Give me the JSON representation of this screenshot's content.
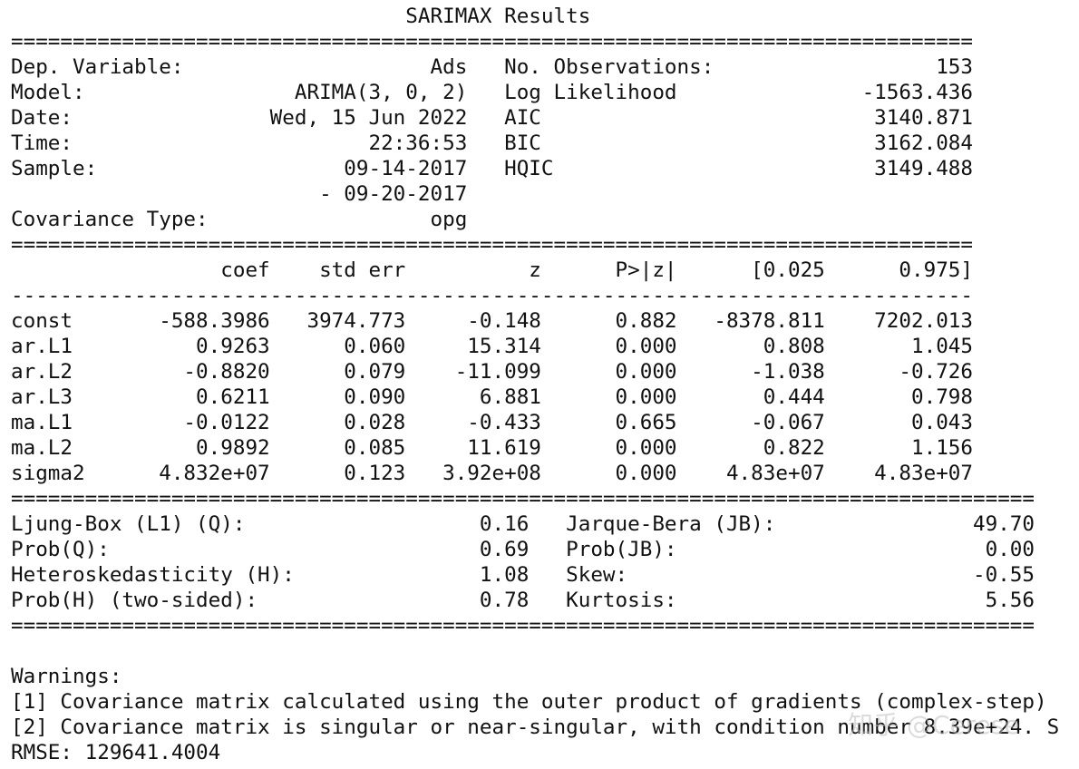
{
  "summary": {
    "lines": [
      "                                SARIMAX Results",
      "==============================================================================",
      "Dep. Variable:                    Ads   No. Observations:                  153",
      "Model:                 ARIMA(3, 0, 2)   Log Likelihood               -1563.436",
      "Date:                Wed, 15 Jun 2022   AIC                           3140.871",
      "Time:                        22:36:53   BIC                           3162.084",
      "Sample:                    09-14-2017   HQIC                          3149.488",
      "                         - 09-20-2017",
      "Covariance Type:                  opg",
      "==============================================================================",
      "                 coef    std err          z      P>|z|      [0.025      0.975]",
      "------------------------------------------------------------------------------",
      "const       -588.3986   3974.773     -0.148      0.882   -8378.811    7202.013",
      "ar.L1          0.9263      0.060     15.314      0.000       0.808       1.045",
      "ar.L2         -0.8820      0.079    -11.099      0.000      -1.038      -0.726",
      "ar.L3          0.6211      0.090      6.881      0.000       0.444       0.798",
      "ma.L1         -0.0122      0.028     -0.433      0.665      -0.067       0.043",
      "ma.L2          0.9892      0.085     11.619      0.000       0.822       1.156",
      "sigma2      4.832e+07      0.123   3.92e+08      0.000    4.83e+07    4.83e+07",
      "===================================================================================",
      "Ljung-Box (L1) (Q):                   0.16   Jarque-Bera (JB):                49.70",
      "Prob(Q):                              0.69   Prob(JB):                         0.00",
      "Heteroskedasticity (H):               1.08   Skew:                            -0.55",
      "Prob(H) (two-sided):                  0.78   Kurtosis:                         5.56",
      "===================================================================================",
      "",
      "Warnings:",
      "[1] Covariance matrix calculated using the outer product of gradients (complex-step)",
      "[2] Covariance matrix is singular or near-singular, with condition number 8.39e+24. S",
      "RMSE: 129641.4004"
    ]
  },
  "watermark": "知乎 @Cerese"
}
